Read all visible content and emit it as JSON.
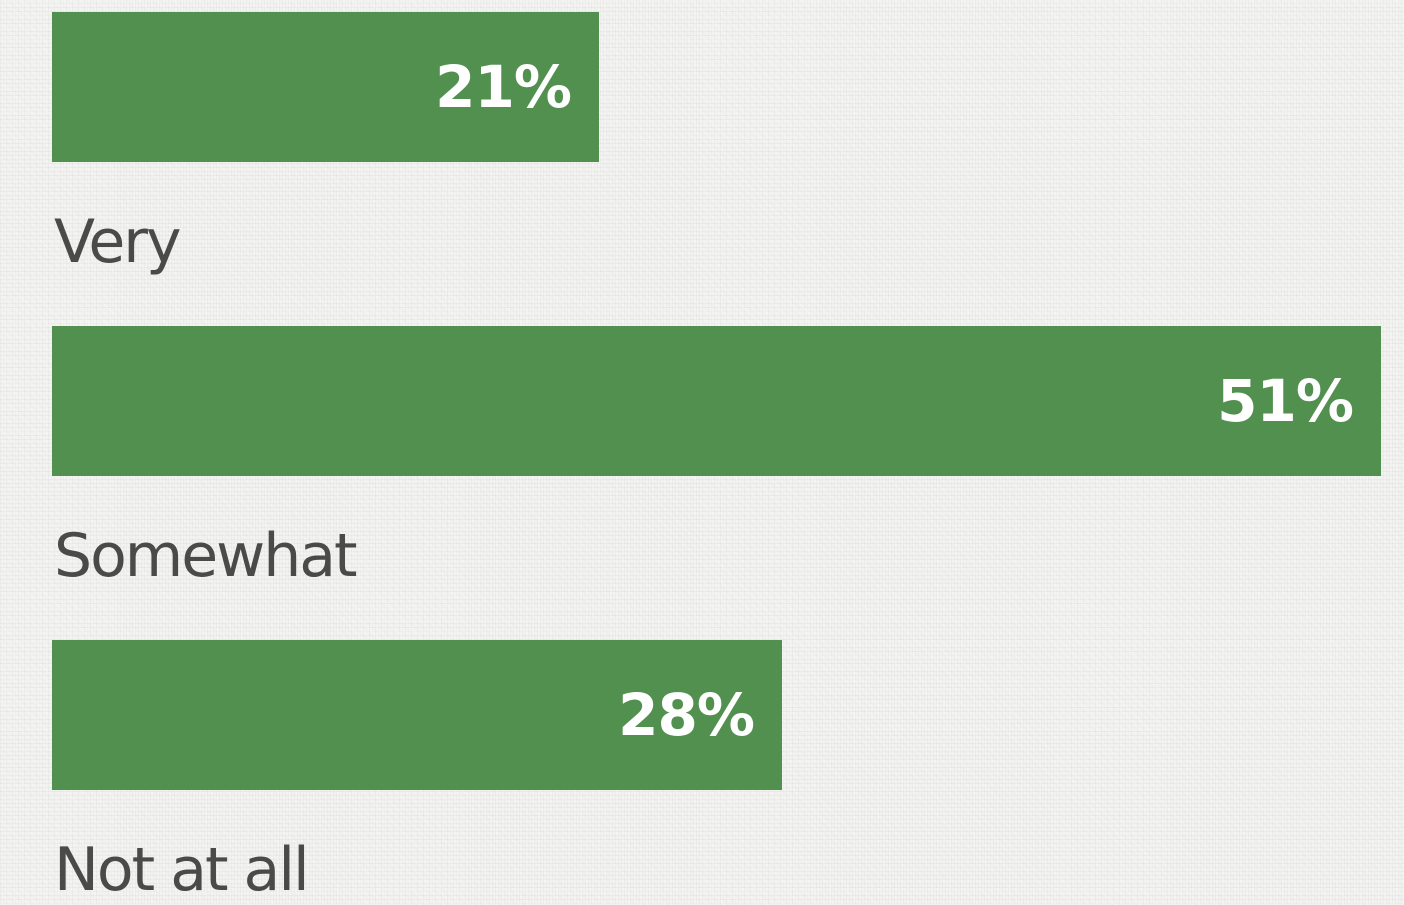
{
  "chart_data": {
    "type": "bar",
    "orientation": "horizontal",
    "categories": [
      "Very",
      "Somewhat",
      "Not at all"
    ],
    "values": [
      21,
      51,
      28
    ],
    "value_labels": [
      "21%",
      "51%",
      "28%"
    ],
    "unit": "%",
    "xlim": [
      0,
      51
    ],
    "bar_color": "#52904f",
    "label_color": "#4a4a4a",
    "value_label_color": "#ffffff",
    "grid": false,
    "legend": "none",
    "title": "",
    "xlabel": "",
    "ylabel": ""
  }
}
